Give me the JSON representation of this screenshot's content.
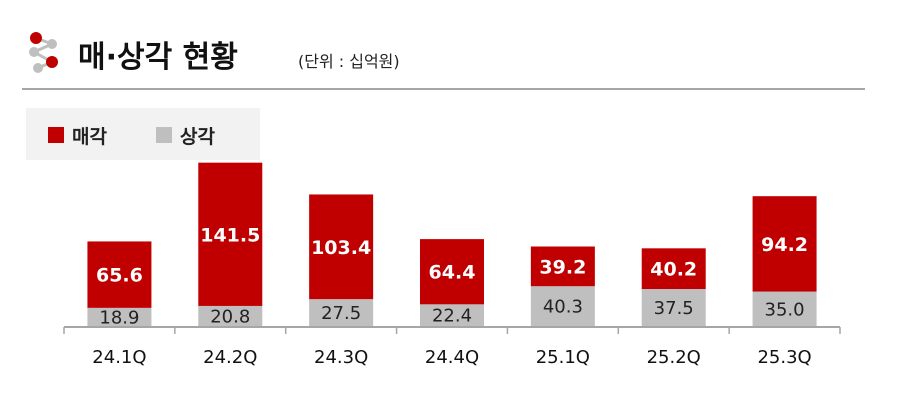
{
  "title": "매·상각 현황",
  "unit_note": "(단위 : 십억원)",
  "logo": {
    "icon": "molecule-logo-icon",
    "colors": [
      "#c00000",
      "#bfbfbf"
    ]
  },
  "colors": {
    "sale": "#c00000",
    "writeoff": "#bfbfbf",
    "axis": "#a6a6a6",
    "rule": "#a6a6a6",
    "legend_bg": "#f2f2f2"
  },
  "chart_data": {
    "type": "bar",
    "stacked": true,
    "categories": [
      "24.1Q",
      "24.2Q",
      "24.3Q",
      "24.4Q",
      "25.1Q",
      "25.2Q",
      "25.3Q"
    ],
    "series": [
      {
        "name": "상각",
        "color": "#bfbfbf",
        "values": [
          18.9,
          20.8,
          27.5,
          22.4,
          40.3,
          37.5,
          35.0
        ]
      },
      {
        "name": "매각",
        "color": "#c00000",
        "values": [
          65.6,
          141.5,
          103.4,
          64.4,
          39.2,
          40.2,
          94.2
        ]
      }
    ],
    "value_labels": {
      "상각": [
        "18.9",
        "20.8",
        "27.5",
        "22.4",
        "40.3",
        "37.5",
        "35.0"
      ],
      "매각": [
        "65.6",
        "141.5",
        "103.4",
        "64.4",
        "39.2",
        "40.2",
        "94.2"
      ]
    },
    "legend": {
      "position": "top-left",
      "items": [
        "매각",
        "상각"
      ]
    },
    "xlabel": "",
    "ylabel": "",
    "y_axis_visible": false,
    "grid": false,
    "ylim": [
      0,
      162
    ]
  }
}
